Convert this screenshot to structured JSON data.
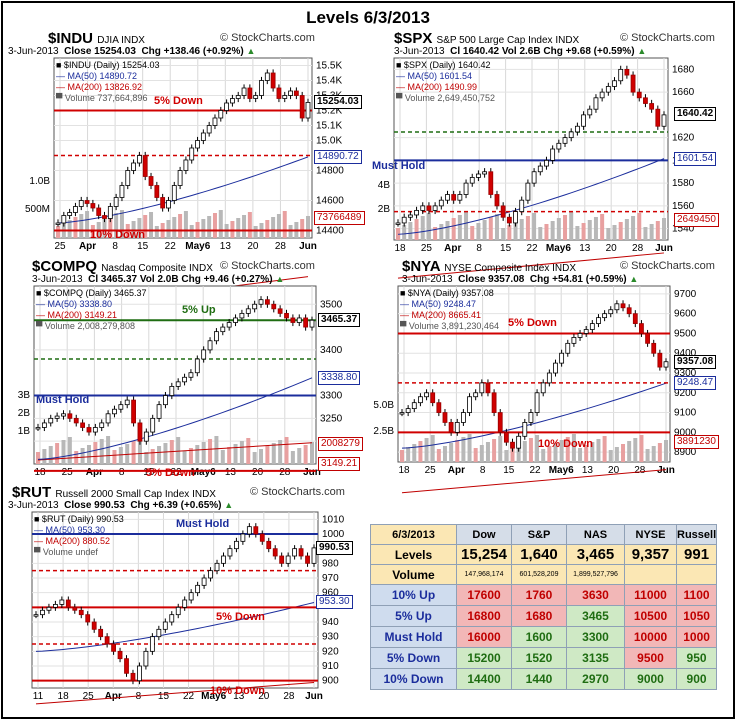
{
  "title": "Levels 6/3/2013",
  "panels": [
    {
      "id": "indu",
      "symbol": "$INDU",
      "name": "DJIA INDX",
      "date": "3-Jun-2013",
      "close": "Close 15254.03",
      "chg": "Chg +138.46 (+0.92%)",
      "legend": [
        "■ $INDU (Daily) 15254.03",
        "— MA(50) 14890.72",
        "— MA(200) 13826.92",
        "▀ Volume 737,664,896"
      ],
      "ticks": [
        "15.5K",
        "15.4K",
        "15.3K",
        "15.2K",
        "15.1K",
        "15.0K",
        "14800",
        "14600",
        "14400"
      ],
      "tags": [
        "15254.03",
        "14890.72",
        "73766489"
      ],
      "vol_ticks": [
        "1.0B",
        "500M"
      ],
      "dates": [
        "25",
        "Apr",
        "8",
        "15",
        "22",
        "May6",
        "13",
        "20",
        "28",
        "Jun"
      ],
      "ann": [
        "5% Down",
        "10% Down"
      ]
    },
    {
      "id": "spx",
      "symbol": "$SPX",
      "name": "S&P 500 Large Cap Index INDX",
      "date": "3-Jun-2013",
      "close": "Cl 1640.42",
      "vol": "Vol 2.6B",
      "chg": "Chg +9.68 (+0.59%)",
      "legend": [
        "■ $SPX (Daily) 1640.42",
        "— MA(50) 1601.54",
        "— MA(200) 1490.99",
        "▀ Volume 2,649,450,752"
      ],
      "ticks": [
        "1680",
        "1660",
        "1620",
        "1600",
        "1580",
        "1560",
        "1540"
      ],
      "tags": [
        "1640.42",
        "1601.54",
        "2649450"
      ],
      "vol_ticks": [
        "4B",
        "2B"
      ],
      "dates": [
        "18",
        "25",
        "Apr",
        "8",
        "15",
        "22",
        "May6",
        "13",
        "20",
        "28",
        "Jun"
      ],
      "ann": [
        "Must Hold"
      ]
    },
    {
      "id": "compq",
      "symbol": "$COMPQ",
      "name": "Nasdaq Composite INDX",
      "date": "3-Jun-2013",
      "close": "Cl 3465.37",
      "vol": "Vol 2.0B",
      "chg": "Chg +9.46 (+0.27%)",
      "legend": [
        "■ $COMPQ (Daily) 3465.37",
        "— MA(50) 3338.80",
        "— MA(200) 3149.21",
        "▀ Volume 2,008,279,808"
      ],
      "ticks": [
        "3500",
        "3400",
        "3300",
        "3250",
        "3200"
      ],
      "tags": [
        "3465.37",
        "3338.80",
        "2008279",
        "3149.21"
      ],
      "vol_ticks": [
        "3B",
        "2B",
        "1B"
      ],
      "dates": [
        "18",
        "25",
        "Apr",
        "8",
        "15",
        "22",
        "May6",
        "13",
        "20",
        "28",
        "Jun"
      ],
      "ann": [
        "5% Up",
        "Must Hold",
        "5% Down"
      ]
    },
    {
      "id": "nya",
      "symbol": "$NYA",
      "name": "NYSE Composite Index INDX",
      "date": "3-Jun-2013",
      "close": "Close 9357.08",
      "chg": "Chg +54.81 (+0.59%)",
      "legend": [
        "■ $NYA (Daily) 9357.08",
        "— MA(50) 9248.47",
        "— MA(200) 8665.41",
        "▀ Volume 3,891,230,464"
      ],
      "ticks": [
        "9700",
        "9600",
        "9500",
        "9400",
        "9300",
        "9200",
        "9100",
        "9000",
        "8900"
      ],
      "tags": [
        "9357.08",
        "9248.47",
        "3891230"
      ],
      "vol_ticks": [
        "5.0B",
        "2.5B"
      ],
      "dates": [
        "18",
        "25",
        "Apr",
        "8",
        "15",
        "22",
        "May6",
        "13",
        "20",
        "28",
        "Jun"
      ],
      "ann": [
        "5% Down",
        "10% Down"
      ]
    },
    {
      "id": "rut",
      "symbol": "$RUT",
      "name": "Russell 2000 Small Cap Index INDX",
      "date": "3-Jun-2013",
      "close": "Close 990.53",
      "chg": "Chg +6.39 (+0.65%)",
      "legend": [
        "■ $RUT (Daily) 990.53",
        "— MA(50) 953.30",
        "— MA(200) 880.52",
        "▀ Volume undef"
      ],
      "ticks": [
        "1010",
        "1000",
        "980",
        "970",
        "960",
        "940",
        "930",
        "920",
        "910",
        "900"
      ],
      "tags": [
        "990.53",
        "953.30"
      ],
      "dates": [
        "11",
        "18",
        "25",
        "Apr",
        "8",
        "15",
        "22",
        "May6",
        "13",
        "20",
        "28",
        "Jun"
      ],
      "ann": [
        "Must Hold",
        "5% Down",
        "10% Down"
      ]
    }
  ],
  "stockcharts": "© StockCharts.com",
  "table": {
    "date": "6/3/2013",
    "cols": [
      "Dow",
      "S&P",
      "NAS",
      "NYSE",
      "Russell"
    ],
    "levels": [
      "15,254",
      "1,640",
      "3,465",
      "9,357",
      "991"
    ],
    "volume": [
      "147,968,174",
      "601,528,209",
      "1,899,527,796",
      "",
      ""
    ],
    "rows": [
      {
        "label": "10% Up",
        "vals": [
          "17600",
          "1760",
          "3630",
          "11000",
          "1100"
        ],
        "cls": [
          "r",
          "r",
          "r",
          "r",
          "r"
        ]
      },
      {
        "label": "5% Up",
        "vals": [
          "16800",
          "1680",
          "3465",
          "10500",
          "1050"
        ],
        "cls": [
          "r",
          "r",
          "g",
          "r",
          "r"
        ]
      },
      {
        "label": "Must Hold",
        "vals": [
          "16000",
          "1600",
          "3300",
          "10000",
          "1000"
        ],
        "cls": [
          "r",
          "g",
          "g",
          "r",
          "r"
        ]
      },
      {
        "label": "5% Down",
        "vals": [
          "15200",
          "1520",
          "3135",
          "9500",
          "950"
        ],
        "cls": [
          "g",
          "g",
          "g",
          "r",
          "g"
        ]
      },
      {
        "label": "10% Down",
        "vals": [
          "14400",
          "1440",
          "2970",
          "9000",
          "900"
        ],
        "cls": [
          "g",
          "g",
          "g",
          "g",
          "g"
        ]
      }
    ],
    "row_labels": {
      "levels": "Levels",
      "volume": "Volume"
    }
  },
  "chart_data": [
    {
      "type": "line",
      "title": "$INDU DJIA INDX",
      "series": [
        {
          "name": "$INDU (Daily)",
          "values": [
            14450,
            14500,
            14520,
            14560,
            14600,
            14580,
            14550,
            14500,
            14480,
            14560,
            14620,
            14700,
            14800,
            14850,
            14900,
            14760,
            14700,
            14620,
            14550,
            14600,
            14700,
            14800,
            14870,
            14950,
            15000,
            15050,
            15100,
            15150,
            15200,
            15250,
            15280,
            15300,
            15350,
            15280,
            15300,
            15400,
            15450,
            15350,
            15280,
            15300,
            15330,
            15300,
            15150,
            15254
          ]
        }
      ],
      "ylim": [
        14350,
        15550
      ],
      "levels": {
        "5% Down": 15200,
        "10% Down": 14400
      },
      "ma50_end": 14890.72,
      "ma200_end": 13826.92
    },
    {
      "type": "line",
      "title": "$SPX S&P 500 Large Cap Index",
      "series": [
        {
          "name": "$SPX (Daily)",
          "values": [
            1545,
            1550,
            1552,
            1556,
            1560,
            1556,
            1560,
            1565,
            1570,
            1565,
            1570,
            1580,
            1585,
            1588,
            1590,
            1570,
            1560,
            1550,
            1545,
            1555,
            1565,
            1580,
            1590,
            1595,
            1600,
            1610,
            1615,
            1620,
            1625,
            1630,
            1640,
            1645,
            1655,
            1660,
            1665,
            1670,
            1680,
            1675,
            1660,
            1655,
            1650,
            1645,
            1630,
            1640
          ]
        }
      ],
      "ylim": [
        1530,
        1690
      ],
      "levels": {
        "Must Hold": 1600,
        "5% Down": 1520
      },
      "ma50_end": 1601.54,
      "ma200_end": 1490.99
    },
    {
      "type": "line",
      "title": "$COMPQ Nasdaq Composite",
      "series": [
        {
          "name": "$COMPQ (Daily)",
          "values": [
            3230,
            3240,
            3250,
            3255,
            3260,
            3250,
            3240,
            3230,
            3220,
            3230,
            3240,
            3260,
            3270,
            3280,
            3290,
            3240,
            3200,
            3220,
            3250,
            3280,
            3300,
            3320,
            3330,
            3340,
            3350,
            3380,
            3400,
            3420,
            3440,
            3450,
            3460,
            3470,
            3480,
            3490,
            3500,
            3510,
            3500,
            3490,
            3480,
            3470,
            3460,
            3470,
            3450,
            3465
          ]
        }
      ],
      "ylim": [
        3150,
        3540
      ],
      "levels": {
        "5% Up": 3465,
        "Must Hold": 3300,
        "5% Down": 3135
      },
      "ma50_end": 3338.8,
      "ma200_end": 3149.21
    },
    {
      "type": "line",
      "title": "$NYA NYSE Composite Index",
      "series": [
        {
          "name": "$NYA (Daily)",
          "values": [
            9100,
            9120,
            9150,
            9180,
            9200,
            9150,
            9100,
            9050,
            9000,
            9050,
            9100,
            9180,
            9200,
            9250,
            9200,
            9100,
            9000,
            8950,
            8920,
            8980,
            9050,
            9100,
            9200,
            9250,
            9300,
            9350,
            9400,
            9450,
            9480,
            9500,
            9520,
            9550,
            9580,
            9600,
            9620,
            9650,
            9630,
            9600,
            9550,
            9500,
            9450,
            9400,
            9330,
            9357
          ]
        }
      ],
      "ylim": [
        8850,
        9740
      ],
      "levels": {
        "5% Down": 9500,
        "10% Down": 9000
      },
      "ma50_end": 9248.47,
      "ma200_end": 8665.41
    },
    {
      "type": "line",
      "title": "$RUT Russell 2000 Small Cap Index",
      "series": [
        {
          "name": "$RUT (Daily)",
          "values": [
            945,
            948,
            950,
            952,
            955,
            950,
            948,
            945,
            940,
            935,
            930,
            925,
            920,
            915,
            905,
            900,
            910,
            920,
            930,
            935,
            940,
            945,
            950,
            955,
            960,
            965,
            970,
            975,
            980,
            985,
            990,
            995,
            1000,
            1005,
            1000,
            995,
            990,
            985,
            980,
            985,
            990,
            985,
            980,
            990.53
          ]
        }
      ],
      "ylim": [
        895,
        1015
      ],
      "levels": {
        "Must Hold": 1000,
        "5% Down": 950,
        "10% Down": 900
      },
      "ma50_end": 953.3,
      "ma200_end": 880.52
    }
  ]
}
